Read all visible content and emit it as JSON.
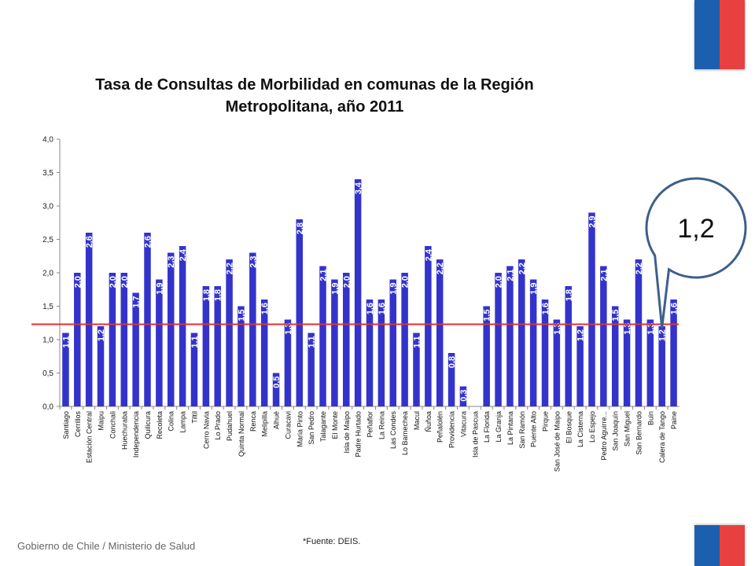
{
  "header": {
    "title_line1": "Tasa de Consultas de Morbilidad en comunas de la Región",
    "title_line2": "Metropolitana, año 2011"
  },
  "footer": {
    "org": "Gobierno de Chile / Ministerio de Salud",
    "source": "*Fuente: DEIS."
  },
  "colors": {
    "bar": "#3333CC",
    "reference_line": "#E53030",
    "callout_border": "#3F5F8C",
    "flag_blue": "#1C5FAE",
    "flag_red": "#E84040"
  },
  "icons": {
    "top_right": "chile-flag-icon",
    "bottom_right": "chile-flag-icon"
  },
  "chart_data": {
    "type": "bar",
    "ylim": [
      0,
      4
    ],
    "yticks": [
      "0,0",
      "0,5",
      "1,0",
      "1,5",
      "2,0",
      "2,5",
      "3,0",
      "3,5",
      "4,0"
    ],
    "grid": false,
    "categories": [
      "Santiago",
      "Cerrillos",
      "Estación Central",
      "Maipu",
      "Conchali",
      "Huechuraba",
      "Independencia",
      "Quilicura",
      "Recoleta",
      "Colina",
      "Lampa",
      "Tiltil",
      "Cerro Navia",
      "Lo Prado",
      "Pudahuel",
      "Quinta Normal",
      "Renca",
      "Melipilla",
      "Alhué",
      "Curacavi",
      "Maria Pinto",
      "San Pedro",
      "Talagante",
      "El Monte",
      "Isla de Maipo",
      "Padre Hurtado",
      "Peñaflor",
      "La Reina",
      "Las Condes",
      "Lo Barnechea",
      "Macul",
      "Ñuñoa",
      "Peñalolén",
      "Providencia",
      "Vitacura",
      "Isla de Pascua",
      "La Florida",
      "La Granja",
      "La Pintana",
      "San Ramón",
      "Puente Alto",
      "Pirque",
      "San José de Maipo",
      "El Bosque",
      "La Cisterna",
      "Lo Espejo",
      "Pedro Aguirre...",
      "San Joaquín",
      "San Miguel",
      "San Bernardo",
      "Buin",
      "Calera de Tango",
      "Paine"
    ],
    "values": [
      1.1,
      2.0,
      2.6,
      1.2,
      2.0,
      2.0,
      1.7,
      2.6,
      1.9,
      2.3,
      2.4,
      1.1,
      1.8,
      1.8,
      2.2,
      1.5,
      2.3,
      1.6,
      0.5,
      1.3,
      2.8,
      1.1,
      2.1,
      1.9,
      2.0,
      3.4,
      1.6,
      1.6,
      1.9,
      2.0,
      1.1,
      2.4,
      2.2,
      0.8,
      0.3,
      0.0,
      1.5,
      2.0,
      2.1,
      2.2,
      1.9,
      1.6,
      1.3,
      1.8,
      1.2,
      2.9,
      2.1,
      1.5,
      1.3,
      2.2,
      1.3,
      1.2,
      1.6
    ],
    "data_labels": [
      "1,1",
      "2,0",
      "2,6",
      "1,2",
      "2,0",
      "2,0",
      "1,7",
      "2,6",
      "1,9",
      "2,3",
      "2,4",
      "1,1",
      "1,8",
      "1,8",
      "2,2",
      "1,5",
      "2,3",
      "1,6",
      "0,5",
      "1,3",
      "2,8",
      "1,1",
      "2,1",
      "1,9",
      "2,0",
      "3,4",
      "1,6",
      "1,6",
      "1,9",
      "2,0",
      "1,1",
      "2,4",
      "2,2",
      "0,8",
      "0,3",
      "",
      "1,5",
      "2,0",
      "2,1",
      "2,2",
      "1,9",
      "1,6",
      "1,3",
      "1,8",
      "1,2",
      "2,9",
      "2,1",
      "1,5",
      "1,3",
      "2,2",
      "1,3",
      "1,2",
      "1,6"
    ],
    "reference_line": {
      "value": 1.23
    },
    "callout": {
      "text": "1,2",
      "target_category": "Calera de Tango"
    }
  }
}
